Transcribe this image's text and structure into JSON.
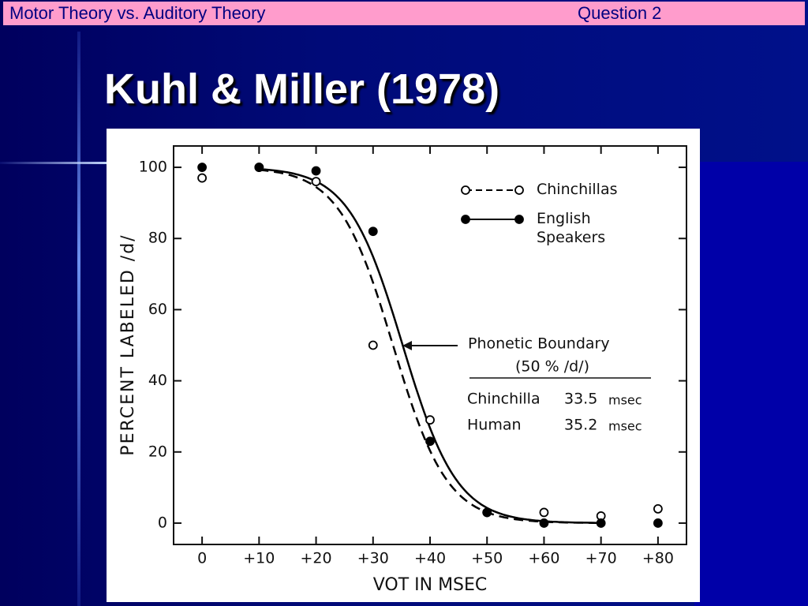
{
  "header": {
    "left": "Motor Theory vs. Auditory Theory",
    "right": "Question 2"
  },
  "slide_title": "Kuhl & Miller (1978)",
  "chart_data": {
    "type": "scatter",
    "x_label": "VOT IN MSEC",
    "y_label": "PERCENT LABELED /d/",
    "x": [
      0,
      10,
      20,
      30,
      40,
      50,
      60,
      70,
      80
    ],
    "series": [
      {
        "name": "Chinchillas",
        "color": "#000000",
        "marker": "open",
        "line": "dashed",
        "values": [
          97,
          100,
          96,
          50,
          29,
          3,
          3,
          2,
          4
        ]
      },
      {
        "name": "English Speakers",
        "color": "#000000",
        "marker": "filled",
        "line": "solid",
        "values": [
          100,
          100,
          99,
          82,
          23,
          3,
          0,
          0,
          0
        ]
      }
    ],
    "xlim": [
      -5,
      85
    ],
    "ylim": [
      -6,
      106
    ],
    "xticks": [
      0,
      {
        "value": 10,
        "label": "+10"
      },
      {
        "value": 20,
        "label": "+20"
      },
      {
        "value": 30,
        "label": "+30"
      },
      {
        "value": 40,
        "label": "+40"
      },
      {
        "value": 50,
        "label": "+50"
      },
      {
        "value": 60,
        "label": "+60"
      },
      {
        "value": 70,
        "label": "+70"
      },
      {
        "value": 80,
        "label": "+80"
      }
    ],
    "yticks": [
      0,
      20,
      40,
      60,
      80,
      100
    ],
    "annotation": {
      "title": "Phonetic Boundary",
      "subtitle": "(50 % /d/)",
      "rows": [
        {
          "name": "Chinchilla",
          "value": 33.5,
          "unit": "msec"
        },
        {
          "name": "Human",
          "value": 35.2,
          "unit": "msec"
        }
      ]
    }
  }
}
